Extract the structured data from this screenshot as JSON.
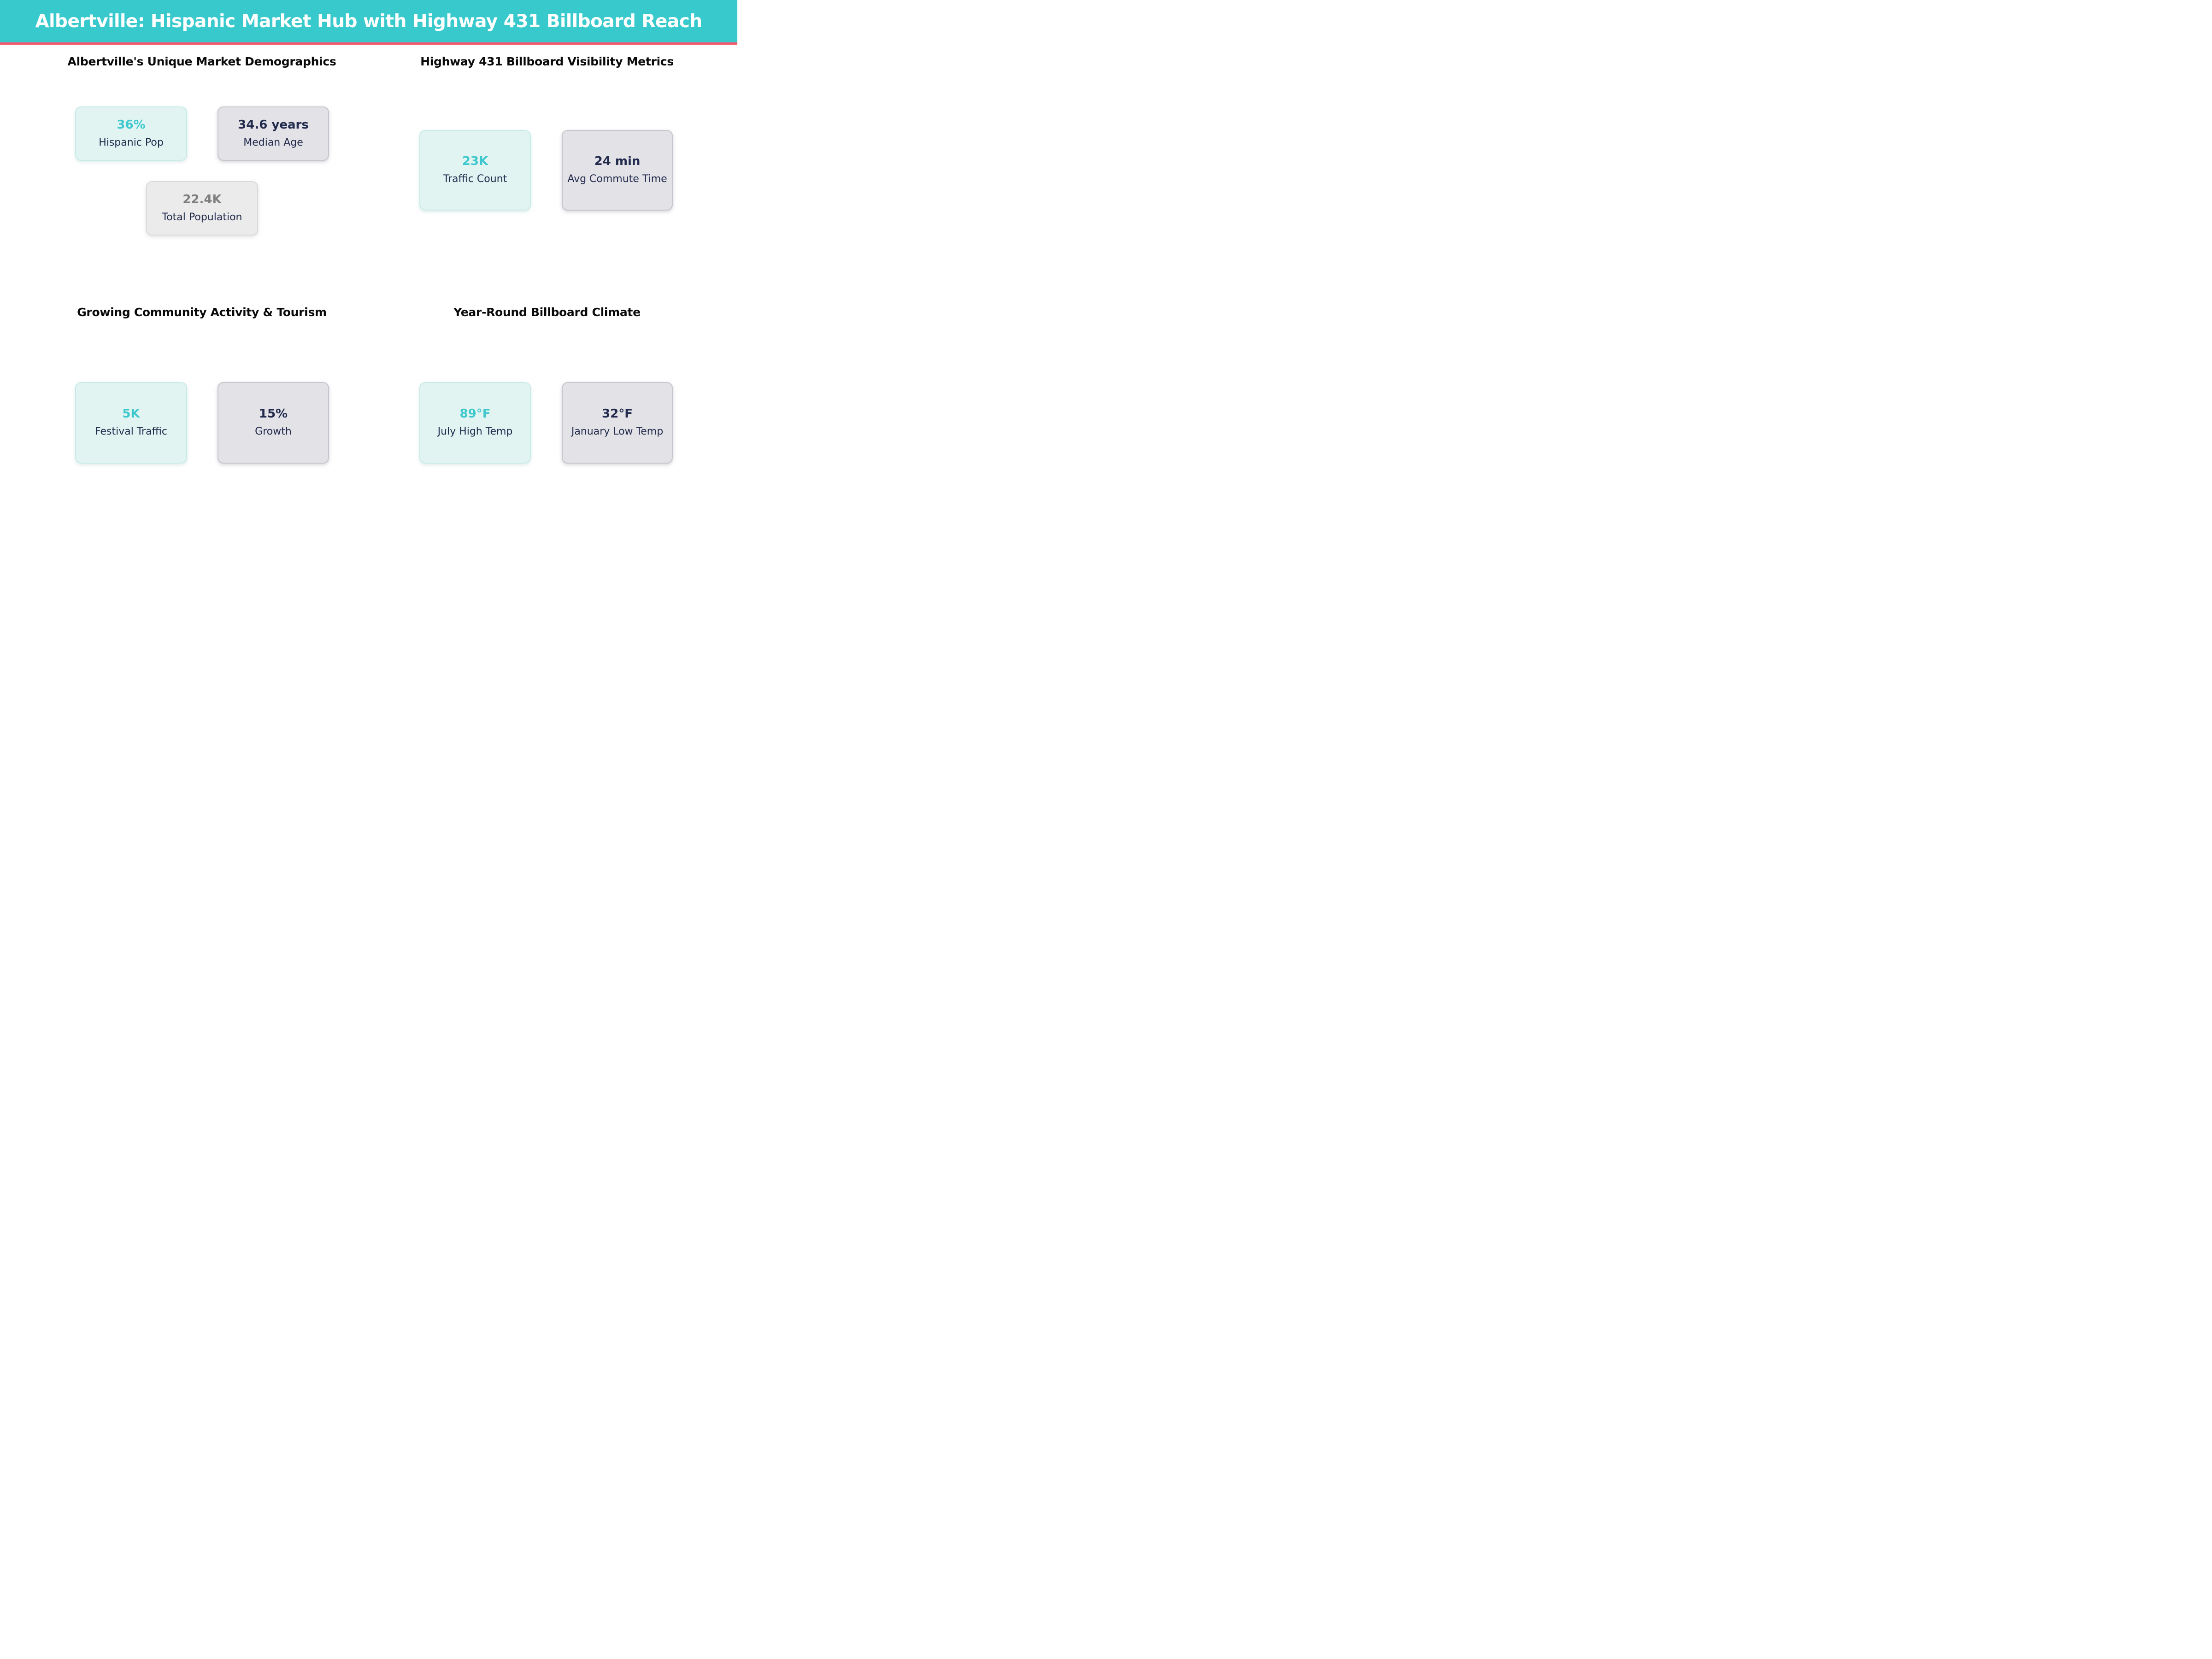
{
  "header": {
    "title": "Albertville: Hispanic Market Hub with Highway 431 Billboard Reach",
    "bg_color": "#38C9CC",
    "accent_color": "#F05A6E",
    "text_color": "#FFFFFF"
  },
  "colors": {
    "teal_value": "#3EC8CD",
    "navy_text": "#212A4B",
    "gray_value": "#7E7E7E",
    "mint_card_bg": "#E1F4F2",
    "mint_card_border": "#C9EBE7",
    "gray_card_bg": "#E2E2E7",
    "gray_card_border": "#C6C6CE",
    "neutral_card_bg": "#EBEBEB",
    "section_title_color": "#0A0A0A",
    "page_bg": "#FFFFFF"
  },
  "sections": [
    {
      "title": "Albertville's Unique Market Demographics",
      "cards": [
        {
          "value": "36%",
          "label": "Hispanic Pop",
          "style": "teal"
        },
        {
          "value": "34.6 years",
          "label": "Median Age",
          "style": "gray"
        },
        {
          "value": "22.4K",
          "label": "Total Population",
          "style": "neutral"
        }
      ]
    },
    {
      "title": "Highway 431 Billboard Visibility Metrics",
      "cards": [
        {
          "value": "23K",
          "label": "Traffic Count",
          "style": "teal"
        },
        {
          "value": "24 min",
          "label": "Avg Commute Time",
          "style": "gray"
        }
      ]
    },
    {
      "title": "Growing Community Activity & Tourism",
      "cards": [
        {
          "value": "5K",
          "label": "Festival Traffic",
          "style": "teal"
        },
        {
          "value": "15%",
          "label": "Growth",
          "style": "gray"
        }
      ]
    },
    {
      "title": "Year-Round Billboard Climate",
      "cards": [
        {
          "value": "89°F",
          "label": "July High Temp",
          "style": "teal"
        },
        {
          "value": "32°F",
          "label": "January Low Temp",
          "style": "gray"
        }
      ]
    }
  ],
  "chart_data": [
    {
      "type": "table",
      "title": "Albertville's Unique Market Demographics",
      "rows": [
        [
          "Hispanic Pop",
          "36%"
        ],
        [
          "Median Age",
          "34.6 years"
        ],
        [
          "Total Population",
          "22.4K"
        ]
      ]
    },
    {
      "type": "table",
      "title": "Highway 431 Billboard Visibility Metrics",
      "rows": [
        [
          "Traffic Count",
          "23K"
        ],
        [
          "Avg Commute Time",
          "24 min"
        ]
      ]
    },
    {
      "type": "table",
      "title": "Growing Community Activity & Tourism",
      "rows": [
        [
          "Festival Traffic",
          "5K"
        ],
        [
          "Growth",
          "15%"
        ]
      ]
    },
    {
      "type": "table",
      "title": "Year-Round Billboard Climate",
      "rows": [
        [
          "July High Temp",
          "89°F"
        ],
        [
          "January Low Temp",
          "32°F"
        ]
      ]
    }
  ]
}
